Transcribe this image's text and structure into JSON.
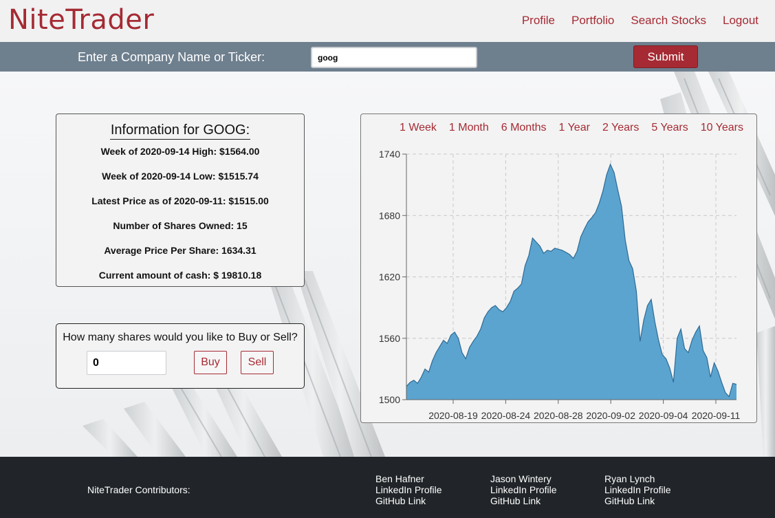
{
  "brand": "NiteTrader",
  "nav": [
    "Profile",
    "Portfolio",
    "Search Stocks",
    "Logout"
  ],
  "search": {
    "label": "Enter a Company Name or Ticker:",
    "value": "goog",
    "submit_label": "Submit"
  },
  "info": {
    "title": "Information for GOOG:",
    "lines": [
      "Week of 2020-09-14 High: $1564.00",
      "Week of 2020-09-14 Low: $1515.74",
      "Latest Price as of 2020-09-11: $1515.00",
      "Number of Shares Owned: 15",
      "Average Price Per Share: 1634.31",
      "Current amount of cash: $ 19810.18"
    ]
  },
  "trade": {
    "question": "How many shares would you like to Buy or Sell?",
    "quantity": "0",
    "buy_label": "Buy",
    "sell_label": "Sell"
  },
  "chart_ranges": [
    "1 Week",
    "1 Month",
    "6 Months",
    "1 Year",
    "2 Years",
    "5 Years",
    "10 Years"
  ],
  "chart_data": {
    "type": "area",
    "title": "",
    "xlabel": "",
    "ylabel": "",
    "ylim": [
      1500,
      1740
    ],
    "y_ticks": [
      1500,
      1560,
      1620,
      1680,
      1740
    ],
    "x_tick_labels": [
      "2020-08-19",
      "2020-08-24",
      "2020-08-28",
      "2020-09-02",
      "2020-09-04",
      "2020-09-11"
    ],
    "grid": true,
    "fill_color": "#5ba4d0",
    "line_color": "#2e6a94",
    "series": [
      {
        "values": [
          1513,
          1517,
          1519,
          1516,
          1522,
          1530,
          1527,
          1538,
          1546,
          1552,
          1558,
          1555,
          1563,
          1566,
          1560,
          1546,
          1540,
          1551,
          1557,
          1562,
          1569,
          1580,
          1586,
          1590,
          1592,
          1588,
          1586,
          1590,
          1596,
          1606,
          1609,
          1613,
          1631,
          1641,
          1658,
          1654,
          1650,
          1643,
          1646,
          1645,
          1648,
          1647,
          1646,
          1644,
          1642,
          1638,
          1645,
          1659,
          1667,
          1674,
          1678,
          1683,
          1692,
          1704,
          1720,
          1730,
          1722,
          1705,
          1689,
          1656,
          1636,
          1628,
          1606,
          1557,
          1578,
          1592,
          1598,
          1576,
          1558,
          1544,
          1540,
          1531,
          1517,
          1560,
          1569,
          1550,
          1546,
          1558,
          1566,
          1572,
          1548,
          1541,
          1522,
          1536,
          1528,
          1517,
          1507,
          1503,
          1516,
          1515
        ]
      }
    ]
  },
  "footer": {
    "title": "NiteTrader Contributors:",
    "contributors": [
      {
        "name": "Ben Hafner",
        "linkedin": "LinkedIn Profile",
        "github": "GitHub Link"
      },
      {
        "name": "Jason Wintery",
        "linkedin": "LinkedIn Profile",
        "github": "GitHub Link"
      },
      {
        "name": "Ryan Lynch",
        "linkedin": "LinkedIn Profile",
        "github": "GitHub Link"
      }
    ]
  },
  "colors": {
    "brand_red": "#a52a33",
    "searchbar": "#6e7f8e",
    "footer": "#212529"
  }
}
